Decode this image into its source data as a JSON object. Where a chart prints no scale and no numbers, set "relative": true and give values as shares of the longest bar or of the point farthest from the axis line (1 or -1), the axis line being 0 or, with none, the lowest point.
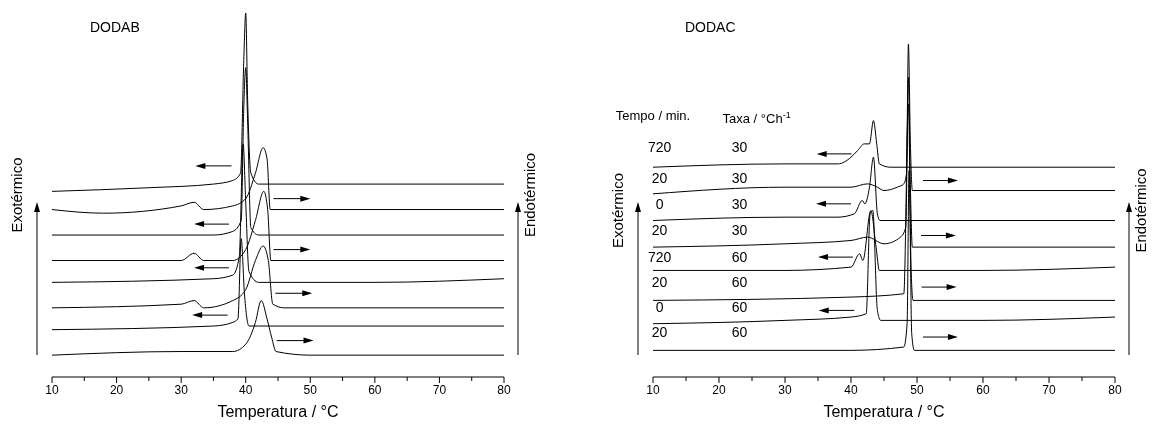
{
  "chart_data": [
    {
      "type": "line",
      "title": "DODAB",
      "xlabel": "Temperatura / °C",
      "ylabel": "Exotérmico",
      "y2label": "Endotérmico",
      "relative": true,
      "tick_labels": "x",
      "marker": "none",
      "line_style": "solid",
      "xlim": [
        10,
        80
      ],
      "xticks": [
        10,
        {
          "value": 15,
          "label": null
        },
        20,
        {
          "value": 25,
          "label": null
        },
        30,
        {
          "value": 35,
          "label": null
        },
        40,
        {
          "value": 45,
          "label": null
        },
        50,
        {
          "value": 55,
          "label": null
        },
        60,
        {
          "value": 65,
          "label": null
        },
        70,
        {
          "value": 75,
          "label": null
        },
        80
      ],
      "series": [
        {
          "color": "#000000",
          "x": [
            10,
            25,
            35,
            38,
            39.2,
            39.7,
            40,
            40.3,
            40.8,
            42,
            80
          ],
          "values": [
            0.51,
            0.52,
            0.53,
            0.54,
            0.56,
            0.87,
            1.0,
            0.76,
            0.56,
            0.53,
            0.53
          ]
        },
        {
          "color": "#000000",
          "x": [
            10,
            18,
            30,
            32,
            33.5,
            38,
            40,
            41.5,
            42.7,
            43.3,
            43.8,
            45,
            80
          ],
          "values": [
            0.46,
            0.45,
            0.47,
            0.48,
            0.46,
            0.47,
            0.49,
            0.56,
            0.63,
            0.6,
            0.46,
            0.46,
            0.46
          ]
        },
        {
          "color": "#000000",
          "x": [
            10,
            35,
            38,
            39.3,
            39.7,
            40,
            40.3,
            40.8,
            42,
            80
          ],
          "values": [
            0.39,
            0.39,
            0.4,
            0.43,
            0.74,
            0.85,
            0.7,
            0.41,
            0.39,
            0.39
          ]
        },
        {
          "color": "#000000",
          "x": [
            10,
            30,
            32,
            33.5,
            38,
            40,
            41.5,
            42.8,
            43.4,
            43.9,
            45,
            80
          ],
          "values": [
            0.32,
            0.32,
            0.34,
            0.32,
            0.32,
            0.35,
            0.43,
            0.51,
            0.46,
            0.32,
            0.32,
            0.32
          ]
        },
        {
          "color": "#000000",
          "x": [
            10,
            35,
            38,
            39,
            39.6,
            40,
            40.5,
            42,
            60,
            80
          ],
          "values": [
            0.26,
            0.27,
            0.28,
            0.33,
            0.64,
            0.48,
            0.29,
            0.26,
            0.26,
            0.27
          ]
        },
        {
          "color": "#000000",
          "x": [
            10,
            30,
            32,
            33.5,
            38,
            40,
            41.5,
            42.7,
            43.5,
            44.2,
            46,
            80
          ],
          "values": [
            0.19,
            0.2,
            0.21,
            0.19,
            0.21,
            0.24,
            0.32,
            0.36,
            0.32,
            0.2,
            0.19,
            0.19
          ]
        },
        {
          "color": "#000000",
          "x": [
            10,
            35,
            38,
            38.8,
            39.3,
            39.8,
            40.5,
            42,
            60,
            80
          ],
          "values": [
            0.13,
            0.14,
            0.15,
            0.16,
            0.38,
            0.23,
            0.14,
            0.14,
            0.14,
            0.14
          ]
        },
        {
          "color": "#000000",
          "x": [
            10,
            30,
            38,
            40,
            41.5,
            42.4,
            43.3,
            44,
            44.7,
            50,
            54,
            80
          ],
          "values": [
            0.06,
            0.07,
            0.07,
            0.09,
            0.15,
            0.21,
            0.16,
            0.11,
            0.07,
            0.06,
            0.06,
            0.06
          ]
        }
      ]
    },
    {
      "type": "line",
      "title": "DODAC",
      "xlabel": "Temperatura / °C",
      "ylabel": "Exotérmico",
      "y2label": "Endotérmico",
      "relative": true,
      "tick_labels": "x",
      "marker": "none",
      "line_style": "solid",
      "xlim": [
        10,
        80
      ],
      "xticks": [
        10,
        {
          "value": 15,
          "label": null
        },
        20,
        {
          "value": 25,
          "label": null
        },
        30,
        {
          "value": 35,
          "label": null
        },
        40,
        {
          "value": 45,
          "label": null
        },
        50,
        {
          "value": 55,
          "label": null
        },
        60,
        {
          "value": 65,
          "label": null
        },
        70,
        {
          "value": 75,
          "label": null
        },
        80
      ],
      "annotations": [
        "Tempo / min.",
        "Taxa / °Ch$^{-1}$",
        "720",
        "30",
        "20",
        "30",
        "0",
        "30",
        "20",
        "30",
        "720",
        "60",
        "20",
        "60",
        "0",
        "60",
        "20",
        "60"
      ],
      "series": [
        {
          "color": "#000000",
          "x": [
            10,
            30,
            38,
            40,
            41,
            42,
            42.8,
            43.4,
            43.9,
            44.3,
            46,
            80
          ],
          "values": [
            0.63,
            0.64,
            0.64,
            0.66,
            0.68,
            0.7,
            0.7,
            0.77,
            0.7,
            0.64,
            0.63,
            0.63
          ]
        },
        {
          "color": "#000000",
          "x": [
            10,
            30,
            40,
            42.5,
            44,
            45,
            47,
            48,
            48.4,
            48.7,
            49,
            49.3,
            50,
            80
          ],
          "values": [
            0.55,
            0.57,
            0.57,
            0.58,
            0.57,
            0.56,
            0.57,
            0.58,
            0.61,
            1.0,
            0.7,
            0.56,
            0.56,
            0.56
          ]
        },
        {
          "color": "#000000",
          "x": [
            10,
            30,
            38,
            40.5,
            41.7,
            42.1,
            42.8,
            43.4,
            44,
            44.4,
            80
          ],
          "values": [
            0.47,
            0.48,
            0.48,
            0.49,
            0.53,
            0.52,
            0.57,
            0.66,
            0.49,
            0.47,
            0.47
          ]
        },
        {
          "color": "#000000",
          "x": [
            10,
            30,
            40,
            42.5,
            45,
            47.5,
            48.3,
            48.7,
            49,
            49.3,
            80
          ],
          "values": [
            0.39,
            0.4,
            0.41,
            0.42,
            0.4,
            0.42,
            0.45,
            0.9,
            0.57,
            0.39,
            0.39
          ]
        },
        {
          "color": "#000000",
          "x": [
            10,
            30,
            40,
            41.3,
            41.8,
            43,
            43.8,
            44.3,
            60,
            80
          ],
          "values": [
            0.32,
            0.32,
            0.33,
            0.37,
            0.35,
            0.5,
            0.39,
            0.32,
            0.32,
            0.33
          ]
        },
        {
          "color": "#000000",
          "x": [
            10,
            40,
            48,
            48.7,
            49.1,
            49.4,
            80
          ],
          "values": [
            0.23,
            0.24,
            0.25,
            0.82,
            0.33,
            0.23,
            0.23
          ]
        },
        {
          "color": "#000000",
          "x": [
            10,
            30,
            40,
            42.3,
            42.9,
            43.3,
            44,
            44.5,
            60,
            80
          ],
          "values": [
            0.16,
            0.17,
            0.18,
            0.19,
            0.49,
            0.5,
            0.2,
            0.17,
            0.17,
            0.18
          ]
        },
        {
          "color": "#000000",
          "x": [
            10,
            40,
            48,
            48.5,
            48.8,
            49.2,
            49.6,
            60,
            80
          ],
          "values": [
            0.08,
            0.08,
            0.09,
            0.16,
            0.62,
            0.13,
            0.08,
            0.08,
            0.08
          ]
        }
      ]
    }
  ]
}
